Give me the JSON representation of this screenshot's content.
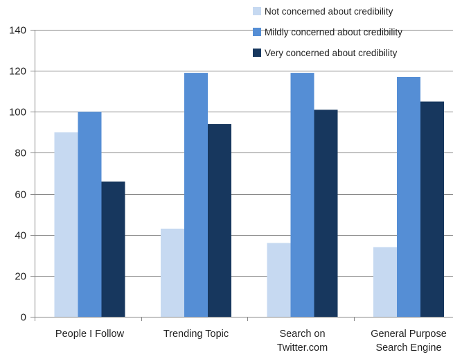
{
  "chart_data": {
    "type": "bar",
    "categories": [
      [
        "People I Follow"
      ],
      [
        "Trending Topic"
      ],
      [
        "Search on",
        "Twitter.com"
      ],
      [
        "General Purpose",
        "Search Engine"
      ]
    ],
    "series": [
      {
        "name": "Not concerned about credibility",
        "color": "#c6d9f1",
        "values": [
          90,
          43,
          36,
          34
        ]
      },
      {
        "name": "Mildly concerned about credibility",
        "color": "#558ed5",
        "values": [
          100,
          119,
          119,
          117
        ]
      },
      {
        "name": "Very concerned about credibility",
        "color": "#17375e",
        "values": [
          66,
          94,
          101,
          105
        ]
      }
    ],
    "ylim": [
      0,
      140
    ],
    "yticks": [
      0,
      20,
      40,
      60,
      80,
      100,
      120,
      140
    ],
    "grid": true,
    "legend": "top-right",
    "grid_color": "#878787",
    "axis_color": "#878787"
  }
}
